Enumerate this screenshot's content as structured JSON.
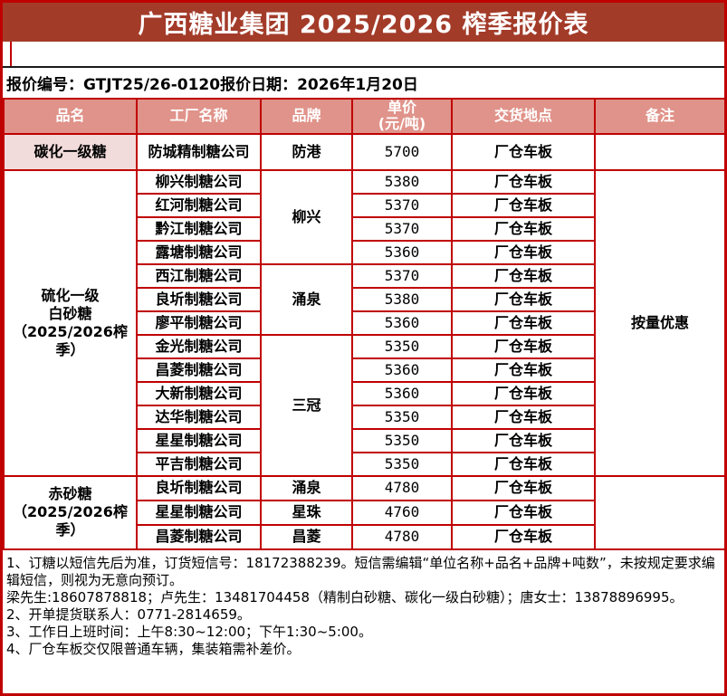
{
  "title": "广西糖业集团 2025/2026 榨季报价表",
  "info_line": "报价编号：GTJT25/26-0120报价日期：2026年1月20日",
  "colors": {
    "border_red": "#C00000",
    "title_bar_bg": "#A33B29",
    "table_header_bg": "#E0938A",
    "product_highlight_bg": "#F2DCDB",
    "title_text": "#FFFFFF",
    "body_text": "#000000"
  },
  "table": {
    "headers": [
      "品名",
      "工厂名称",
      "品牌",
      "单价\n(元/吨)",
      "交货地点",
      "备注"
    ],
    "sections": [
      {
        "product_lines": [
          "碳化一级糖"
        ],
        "highlight": true,
        "remark": "",
        "groups": [
          {
            "brand": "防港",
            "rows": [
              {
                "factory": "防城精制糖公司",
                "price": "5700",
                "delivery": "厂仓车板"
              }
            ]
          }
        ]
      },
      {
        "product_lines": [
          "硫化一级",
          "白砂糖",
          "（2025/2026榨季）"
        ],
        "highlight": false,
        "remark": "按量优惠",
        "groups": [
          {
            "brand": "柳兴",
            "rows": [
              {
                "factory": "柳兴制糖公司",
                "price": "5380",
                "delivery": "厂仓车板"
              },
              {
                "factory": "红河制糖公司",
                "price": "5370",
                "delivery": "厂仓车板"
              },
              {
                "factory": "黔江制糖公司",
                "price": "5370",
                "delivery": "厂仓车板"
              },
              {
                "factory": "露塘制糖公司",
                "price": "5360",
                "delivery": "厂仓车板"
              }
            ]
          },
          {
            "brand": "涌泉",
            "rows": [
              {
                "factory": "西江制糖公司",
                "price": "5370",
                "delivery": "厂仓车板"
              },
              {
                "factory": "良圻制糖公司",
                "price": "5380",
                "delivery": "厂仓车板"
              },
              {
                "factory": "廖平制糖公司",
                "price": "5360",
                "delivery": "厂仓车板"
              }
            ]
          },
          {
            "brand": "三冠",
            "rows": [
              {
                "factory": "金光制糖公司",
                "price": "5350",
                "delivery": "厂仓车板"
              },
              {
                "factory": "昌菱制糖公司",
                "price": "5360",
                "delivery": "厂仓车板"
              },
              {
                "factory": "大新制糖公司",
                "price": "5360",
                "delivery": "厂仓车板"
              },
              {
                "factory": "达华制糖公司",
                "price": "5350",
                "delivery": "厂仓车板"
              },
              {
                "factory": "星星制糖公司",
                "price": "5350",
                "delivery": "厂仓车板"
              },
              {
                "factory": "平吉制糖公司",
                "price": "5350",
                "delivery": "厂仓车板"
              }
            ]
          }
        ]
      },
      {
        "product_lines": [
          "赤砂糖",
          "（2025/2026榨季）"
        ],
        "highlight": false,
        "remark": "",
        "groups": [
          {
            "brand": "涌泉",
            "rows": [
              {
                "factory": "良圻制糖公司",
                "price": "4780",
                "delivery": "厂仓车板"
              }
            ]
          },
          {
            "brand": "星珠",
            "rows": [
              {
                "factory": "星星制糖公司",
                "price": "4760",
                "delivery": "厂仓车板"
              }
            ]
          },
          {
            "brand": "昌菱",
            "rows": [
              {
                "factory": "昌菱制糖公司",
                "price": "4780",
                "delivery": "厂仓车板"
              }
            ]
          }
        ]
      }
    ]
  },
  "notes": [
    "1、订糖以短信先后为准，订货短信号：18172388239。短信需编辑“单位名称+品名+品牌+吨数”，未按规定要求编辑短信，则视为无意向预订。",
    "梁先生:18607878818；卢先生：13481704458（精制白砂糖、碳化一级白砂糖）；唐女士：13878896995。",
    "2、开单提货联系人：0771-2814659。",
    "3、工作日上班时间：上午8:30~12:00；下午1:30~5:00。",
    "4、厂仓车板交仅限普通车辆，集装箱需补差价。"
  ]
}
